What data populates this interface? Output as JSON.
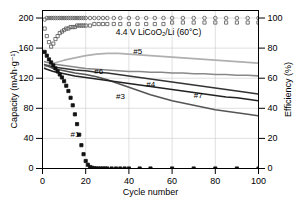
{
  "chart_data": {
    "type": "line",
    "title": "4.4 V LiCoO₂/Li (60°C)",
    "xlabel": "Cycle number",
    "ylabel": "Capacity (mAh·g⁻¹)",
    "y2label": "Efficiency (%)",
    "xlim": [
      0,
      100
    ],
    "xticks": [
      0,
      20,
      40,
      60,
      80,
      100
    ],
    "ylim": [
      0,
      210
    ],
    "yticks": [
      0,
      40,
      80,
      120,
      160,
      200
    ],
    "y2lim": [
      0,
      105
    ],
    "y2ticks": [
      0,
      20,
      40,
      60,
      80,
      100
    ],
    "grid": true,
    "series": [
      {
        "type": "line",
        "color": "#b0b0b0",
        "x": [
          1,
          5,
          10,
          15,
          20,
          25,
          30,
          35,
          40,
          45,
          50,
          55,
          60,
          65,
          70,
          75,
          80,
          85,
          90,
          95,
          100
        ],
        "values": [
          135,
          140,
          144,
          147,
          150,
          152,
          153,
          153,
          152,
          151,
          150,
          149,
          148,
          147,
          146,
          145,
          144,
          143,
          142,
          141,
          140
        ]
      },
      {
        "type": "line",
        "color": "#888888",
        "x": [
          1,
          5,
          10,
          15,
          20,
          25,
          30,
          35,
          40,
          45,
          50,
          55,
          60,
          65,
          70,
          75,
          80,
          85,
          90,
          95,
          100
        ],
        "values": [
          142,
          139,
          137,
          135,
          133,
          132,
          131,
          130,
          129,
          129,
          128,
          128,
          127,
          127,
          126,
          126,
          125,
          125,
          124,
          124,
          123
        ]
      },
      {
        "type": "line",
        "color": "#333333",
        "x": [
          1,
          5,
          10,
          15,
          20,
          25,
          30,
          35,
          40,
          45,
          50,
          55,
          60,
          65,
          70,
          75,
          80,
          85,
          90,
          95,
          100
        ],
        "values": [
          138,
          135,
          133,
          131,
          130,
          128,
          127,
          125,
          123,
          121,
          119,
          117,
          115,
          113,
          111,
          109,
          107,
          105,
          103,
          101,
          99
        ]
      },
      {
        "type": "line",
        "color": "#555555",
        "x": [
          1,
          5,
          10,
          15,
          20,
          25,
          30,
          35,
          40,
          45,
          50,
          55,
          60,
          65,
          70,
          75,
          80,
          85,
          90,
          95,
          100
        ],
        "values": [
          138,
          133,
          130,
          127,
          125,
          122,
          118,
          113,
          108,
          103,
          98,
          94,
          90,
          87,
          84,
          81,
          78,
          76,
          74,
          72,
          70
        ]
      },
      {
        "type": "line",
        "color": "#222222",
        "x": [
          1,
          5,
          10,
          15,
          20,
          25,
          30,
          35,
          40,
          45,
          50,
          55,
          60,
          65,
          70,
          75,
          80,
          85,
          90,
          95,
          100
        ],
        "values": [
          133,
          129,
          126,
          123,
          121,
          119,
          117,
          115,
          113,
          111,
          109,
          107,
          105,
          103,
          101,
          99,
          97,
          95,
          94,
          92,
          90
        ]
      },
      {
        "type": "scatter",
        "color": "#111111",
        "marker": "square",
        "x": [
          1,
          2,
          3,
          4,
          5,
          6,
          7,
          8,
          9,
          10,
          11,
          12,
          13,
          14,
          15,
          16,
          17,
          18,
          19,
          20,
          21,
          22,
          23,
          24,
          25,
          26,
          27,
          28,
          29,
          30,
          32,
          34,
          36,
          38,
          40,
          45,
          50,
          60,
          70,
          80,
          90,
          100
        ],
        "values": [
          155,
          150,
          145,
          141,
          137,
          133,
          129,
          125,
          121,
          116,
          110,
          103,
          94,
          84,
          72,
          59,
          45,
          31,
          19,
          10,
          5,
          2,
          1,
          0.3,
          0.1,
          0,
          0,
          0,
          0,
          0,
          0,
          0,
          0,
          0,
          0,
          0,
          0,
          0,
          0,
          0,
          0,
          0
        ]
      },
      {
        "type": "scatter",
        "color": "#555555",
        "marker": "circle",
        "axis": "y2",
        "x": [
          1,
          2,
          3,
          4,
          5,
          6,
          7,
          8,
          9,
          10,
          11,
          12,
          13,
          14,
          15,
          16,
          17,
          18,
          19,
          20,
          22,
          24,
          26,
          28,
          30,
          33,
          36,
          40,
          44,
          48,
          52,
          56,
          60,
          65,
          70,
          75,
          80,
          85,
          90,
          95,
          100
        ],
        "values": [
          99,
          100,
          100,
          100,
          100,
          100,
          100,
          100,
          100,
          100,
          100,
          100,
          100,
          100,
          100,
          100,
          100,
          100,
          100,
          100,
          100,
          100,
          100,
          100,
          100,
          100,
          100,
          100,
          100,
          100,
          100,
          100,
          100,
          100,
          100,
          100,
          100,
          100,
          100,
          100,
          100
        ]
      },
      {
        "type": "scatter",
        "color": "#555555",
        "marker": "square",
        "axis": "y2",
        "x": [
          1,
          2,
          3,
          4,
          5,
          6,
          7,
          8,
          9,
          10,
          11,
          12,
          13,
          14,
          15,
          16,
          17,
          18,
          19,
          20,
          22,
          24,
          26,
          28,
          30,
          33,
          36,
          40,
          44,
          48,
          52,
          56,
          60,
          65,
          70,
          75,
          80,
          85,
          90,
          95,
          100
        ],
        "values": [
          93,
          88,
          84,
          81,
          83,
          86,
          88,
          90,
          91,
          92,
          93,
          93,
          94,
          94,
          94,
          95,
          95,
          95,
          95,
          95,
          95,
          96,
          96,
          96,
          96,
          96,
          96,
          96,
          96,
          96,
          96,
          96,
          97,
          97,
          97,
          97,
          97,
          97,
          97,
          97,
          97
        ]
      }
    ],
    "annotations": [
      {
        "text": "#1",
        "x": 13,
        "y": 45
      },
      {
        "text": "#3",
        "x": 34,
        "y": 96
      },
      {
        "text": "#4",
        "x": 48,
        "y": 112
      },
      {
        "text": "#5",
        "x": 42,
        "y": 156
      },
      {
        "text": "#6",
        "x": 24,
        "y": 129
      },
      {
        "text": "#7",
        "x": 70,
        "y": 97
      }
    ]
  }
}
